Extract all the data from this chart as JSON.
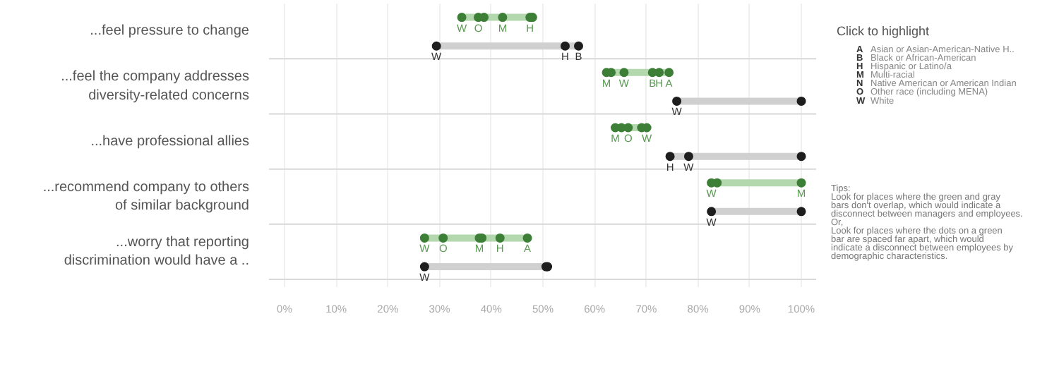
{
  "chart_data": {
    "type": "scatter",
    "orientation": "horizontal",
    "categories": [
      "...feel pressure to change",
      "...feel the company addresses diversity-related concerns",
      "...have professional allies",
      "...recommend company to others of similar background",
      "...worry that reporting discrimination would have a .."
    ],
    "xlim": [
      -3,
      103
    ],
    "xticks": [
      {
        "value": 0,
        "label": "0%"
      },
      {
        "value": 10,
        "label": "10%"
      },
      {
        "value": 20,
        "label": "20%"
      },
      {
        "value": 30,
        "label": "30%"
      },
      {
        "value": 40,
        "label": "40%"
      },
      {
        "value": 50,
        "label": "50%"
      },
      {
        "value": 60,
        "label": "60%"
      },
      {
        "value": 70,
        "label": "70%"
      },
      {
        "value": 80,
        "label": "80%"
      },
      {
        "value": 90,
        "label": "90%"
      },
      {
        "value": 100,
        "label": "100%"
      }
    ],
    "grid": true,
    "legend_title": "Click to highlight",
    "series": [
      {
        "name": "W",
        "color": "#3d7f37",
        "values": [
          34.3,
          65.7,
          70.1,
          82.6,
          27.1
        ]
      },
      {
        "name": "O",
        "color": "#3d7f37",
        "values": [
          37.5,
          null,
          66.5,
          null,
          30.7
        ]
      },
      {
        "name": "M",
        "color": "#3d7f37",
        "values": [
          42.2,
          62.3,
          64,
          100,
          37.7
        ]
      },
      {
        "name": "H",
        "color": "#3d7f37",
        "values": [
          47.5,
          72.5,
          null,
          null,
          41.7
        ]
      },
      {
        "name": "B",
        "color": "#3d7f37",
        "values": [
          null,
          71.2,
          null,
          null,
          null
        ]
      },
      {
        "name": "A",
        "color": "#3d7f37",
        "values": [
          null,
          74.4,
          null,
          null,
          47
        ]
      },
      {
        "color": "#3d7f37",
        "values": [
          38.6,
          63.2,
          65.2,
          83.7,
          38.2
        ]
      },
      {
        "color": "#3d7f37",
        "values": [
          48,
          null,
          69.1,
          null,
          null
        ]
      },
      {
        "name": "W",
        "color": "#1e1e1e",
        "values": [
          29.4,
          75.9,
          78.2,
          82.6,
          27.1
        ]
      },
      {
        "name": "H",
        "color": "#1e1e1e",
        "values": [
          54.3,
          null,
          74.6,
          null,
          null
        ]
      },
      {
        "name": "B",
        "color": "#1e1e1e",
        "values": [
          56.9,
          null,
          null,
          null,
          null
        ]
      },
      {
        "color": "#1e1e1e",
        "values": [
          null,
          100,
          100,
          100,
          50.6
        ]
      },
      {
        "color": "#1e1e1e",
        "values": [
          null,
          null,
          null,
          null,
          50.9
        ]
      }
    ],
    "annotations": [
      "A  Asian or Asian-American-Native H..",
      "B  Black or African-American",
      "H  Hispanic or Latino/a",
      "M  Multi-racial",
      "N  Native American or American Indian",
      "O  Other race (including MENA)",
      "W  White",
      "Tips:",
      "Look for places where the green and gray bars don't overlap, which would indicate a disconnect between managers and employees.",
      "Or,",
      "Look for places where the dots on a green bar are spaced far apart, which would indicate a disconnect between employees by demographic characteristics."
    ]
  }
}
